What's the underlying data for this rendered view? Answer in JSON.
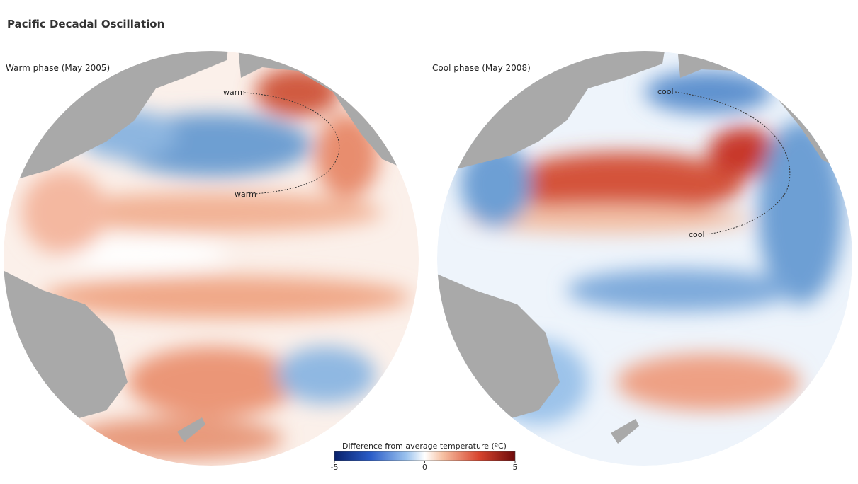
{
  "title": "Pacific Decadal Oscillation",
  "maps": [
    {
      "title": "Warm phase (May 2005)",
      "annotations": [
        "warm",
        "warm"
      ]
    },
    {
      "title": "Cool phase (May 2008)",
      "annotations": [
        "cool",
        "cool"
      ]
    }
  ],
  "colorbar": {
    "title": "Difference from average temperature (ºC)",
    "range": [
      -5,
      5
    ],
    "ticks": [
      -5,
      0,
      5
    ]
  }
}
